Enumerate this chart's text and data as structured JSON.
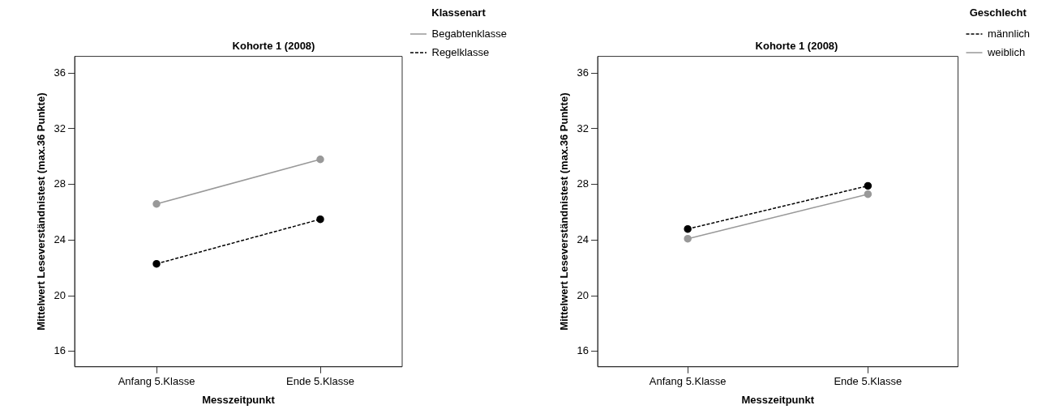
{
  "chart_data": [
    {
      "type": "line",
      "title": "Kohorte 1 (2008)",
      "xlabel": "Messzeitpunkt",
      "ylabel": "Mittelwert Leseverständnistest (max.36 Punkte)",
      "legend_title": "Klassenart",
      "categories": [
        "Anfang 5.Klasse",
        "Ende 5.Klasse"
      ],
      "series": [
        {
          "name": "Begabtenklasse",
          "color": "#999999",
          "line_style": "solid",
          "values": [
            26.6,
            29.8
          ]
        },
        {
          "name": "Regelklasse",
          "color": "#000000",
          "line_style": "dashed",
          "values": [
            22.3,
            25.5
          ]
        }
      ],
      "ylim": [
        14.9,
        37.2
      ],
      "yticks": [
        16,
        20,
        24,
        28,
        32,
        36
      ],
      "grid": false,
      "legend": "top right",
      "marker": "circle"
    },
    {
      "type": "line",
      "title": "Kohorte 1 (2008)",
      "xlabel": "Messzeitpunkt",
      "ylabel": "Mittelwert Leseverständnistest (max.36 Punkte)",
      "legend_title": "Geschlecht",
      "categories": [
        "Anfang 5.Klasse",
        "Ende 5.Klasse"
      ],
      "series": [
        {
          "name": "männlich",
          "color": "#000000",
          "line_style": "dashed",
          "values": [
            24.8,
            27.9
          ]
        },
        {
          "name": "weiblich",
          "color": "#999999",
          "line_style": "solid",
          "values": [
            24.1,
            27.3
          ]
        }
      ],
      "ylim": [
        14.9,
        37.2
      ],
      "yticks": [
        16,
        20,
        24,
        28,
        32,
        36
      ],
      "grid": false,
      "legend": "top right",
      "marker": "circle"
    }
  ]
}
